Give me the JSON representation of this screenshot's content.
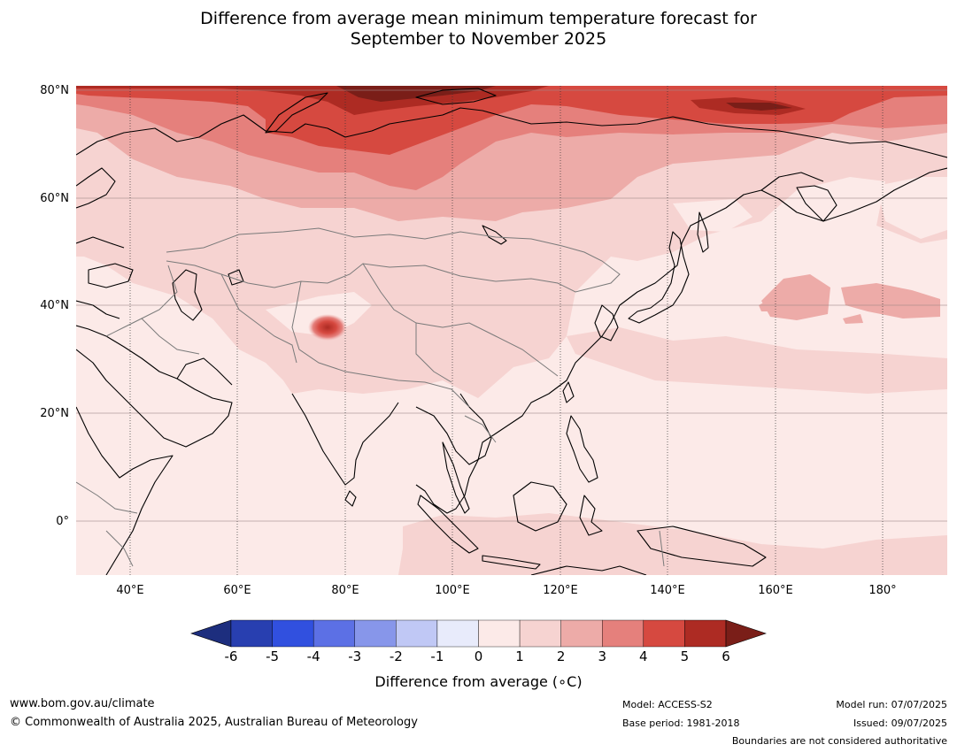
{
  "title_line1": "Difference from average mean minimum temperature forecast for",
  "title_line2": "September to November 2025",
  "map": {
    "lat_labels": [
      "80°N",
      "60°N",
      "40°N",
      "20°N",
      "0°"
    ],
    "lon_labels": [
      "40°E",
      "60°E",
      "80°E",
      "100°E",
      "120°E",
      "140°E",
      "160°E",
      "180°"
    ],
    "ocean_color": "#fceae8"
  },
  "colorbar": {
    "ticks": [
      "-6",
      "-5",
      "-4",
      "-3",
      "-2",
      "-1",
      "0",
      "1",
      "2",
      "3",
      "4",
      "5",
      "6"
    ],
    "colors": [
      "#1d2e7e",
      "#283fb0",
      "#3150df",
      "#5c70e5",
      "#8796ea",
      "#c0c8f5",
      "#e8ebfb",
      "#fceae8",
      "#f6d3d1",
      "#edaba8",
      "#e5807c",
      "#d64940",
      "#ad2b23",
      "#7a1e18"
    ],
    "label": "Difference from average (∘C)"
  },
  "footer": {
    "url": "www.bom.gov.au/climate",
    "copyright": "© Commonwealth of Australia 2025, Australian Bureau of Meteorology",
    "model": "Model: ACCESS-S2",
    "base_period": "Base period: 1981-2018",
    "model_run": "Model run: 07/07/2025",
    "issued": "Issued: 09/07/2025",
    "disclaimer": "Boundaries are not considered authoritative"
  }
}
